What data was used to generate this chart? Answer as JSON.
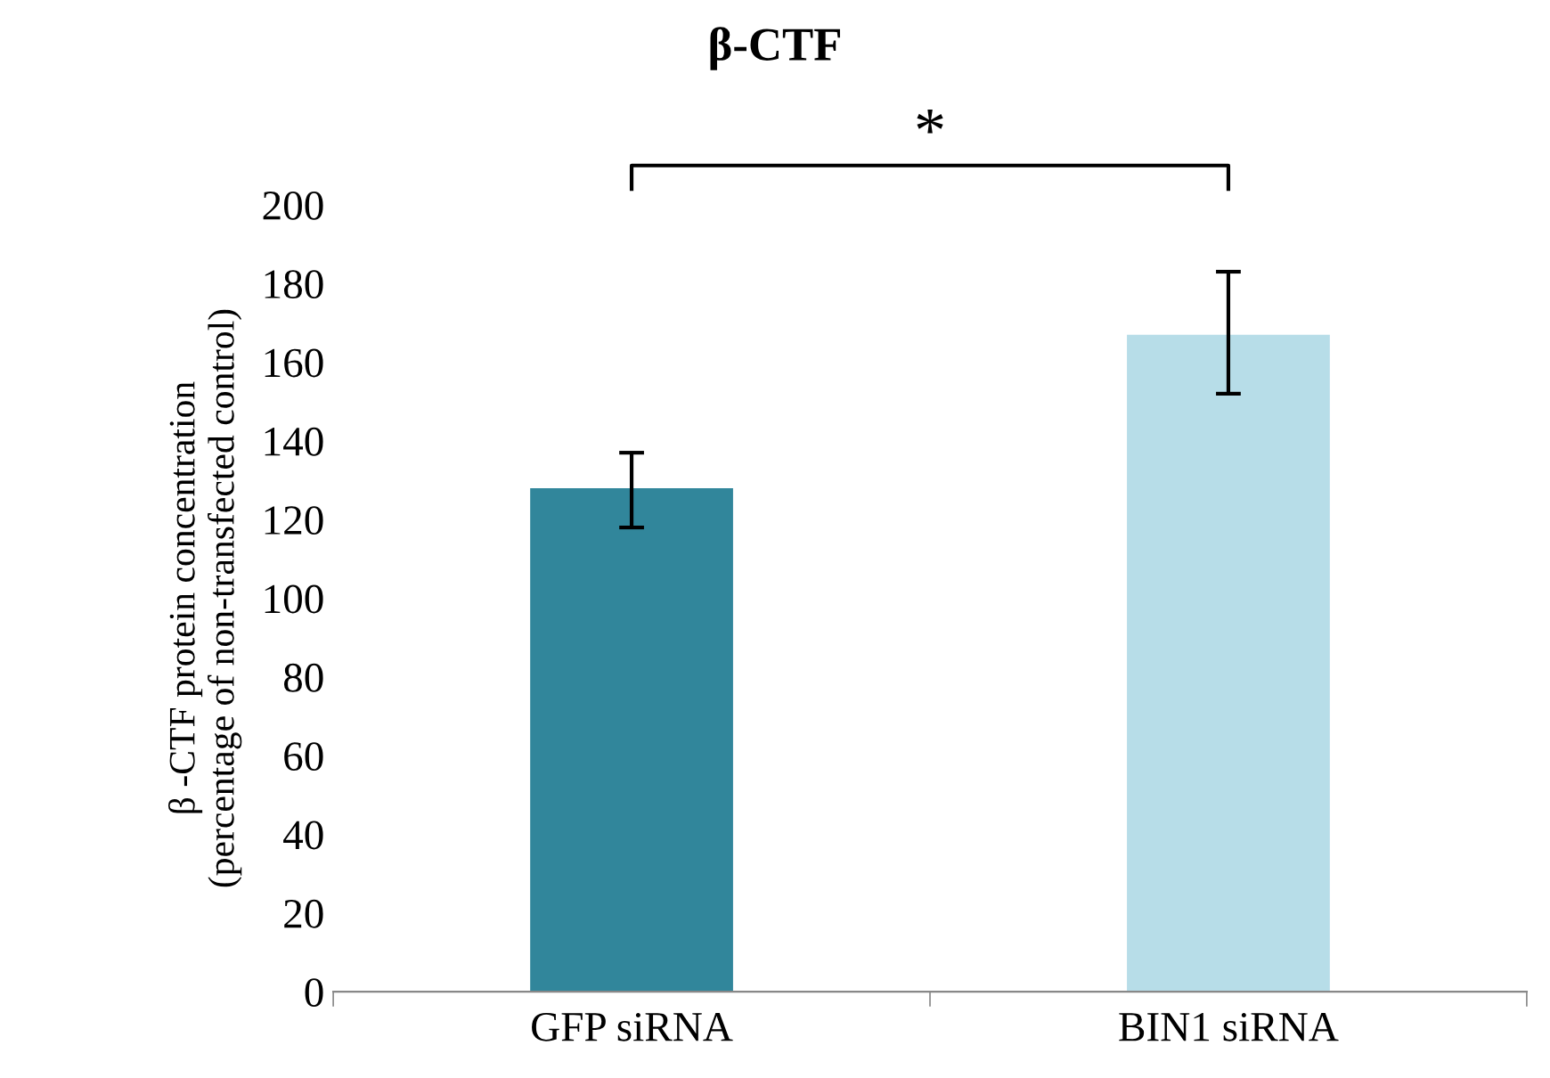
{
  "chart_data": {
    "type": "bar",
    "title": "β-CTF",
    "ylabel": "β -CTF protein concentration\n(percentage of non-transfected control)",
    "categories": [
      "GFP siRNA",
      "BIN1 siRNA"
    ],
    "values": [
      128,
      167
    ],
    "colors": [
      "#31869b",
      "#b7dde8"
    ],
    "errors": [
      [
        118,
        137
      ],
      [
        152,
        183
      ]
    ],
    "ylim": [
      0,
      200
    ],
    "yticks": [
      0,
      20,
      40,
      60,
      80,
      100,
      120,
      140,
      160,
      180,
      200
    ],
    "annotations": [
      "*"
    ],
    "grid": false,
    "legend": false
  }
}
